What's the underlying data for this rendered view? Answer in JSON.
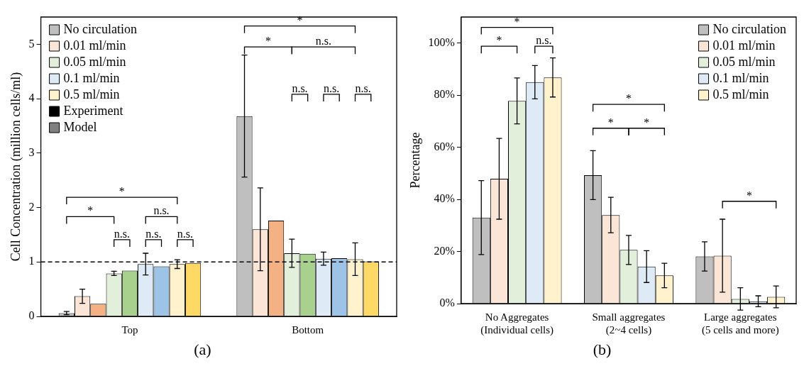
{
  "chart_data": [
    {
      "type": "bar",
      "title": "(a)",
      "ylabel": "Cell Concentration (million cells/ml)",
      "categories": [
        "Top",
        "Bottom"
      ],
      "ylim": [
        0,
        5.5
      ],
      "yticks": [
        0,
        1,
        2,
        3,
        4,
        5
      ],
      "grid": false,
      "legend": "top left",
      "series": [
        {
          "name": "No circulation",
          "color": "#bfbfbf",
          "values": [
            0.06,
            3.68
          ],
          "errors": [
            0.03,
            1.12
          ]
        },
        {
          "name": "0.01 ml/min",
          "color": "#fbe5d6",
          "values": [
            0.37,
            1.6
          ],
          "errors": [
            0.13,
            0.76
          ]
        },
        {
          "color": "#f4b183",
          "values": [
            0.23,
            1.76
          ]
        },
        {
          "name": "0.05 ml/min",
          "color": "#e2efda",
          "values": [
            0.79,
            1.16
          ],
          "errors": [
            0.04,
            0.26
          ]
        },
        {
          "color": "#a9d18e",
          "values": [
            0.84,
            1.15
          ]
        },
        {
          "name": "0.1 ml/min",
          "color": "#deebf7",
          "values": [
            0.96,
            1.06
          ],
          "errors": [
            0.2,
            0.12
          ]
        },
        {
          "color": "#9dc3e6",
          "values": [
            0.92,
            1.07
          ]
        },
        {
          "name": "0.5 ml/min",
          "color": "#fff2cc",
          "values": [
            0.96,
            1.05
          ],
          "errors": [
            0.08,
            0.3
          ]
        },
        {
          "color": "#ffd966",
          "values": [
            0.98,
            1.01
          ]
        },
        {
          "name": "Experiment",
          "color": "#000000",
          "values": [
            null,
            null
          ]
        },
        {
          "name": "Model",
          "color": "#808080",
          "values": [
            null,
            null
          ]
        }
      ],
      "ref_lines": [
        {
          "axis": "y",
          "value": 1,
          "line_style": "dashed",
          "color": "#000000"
        }
      ],
      "annotations": [
        "*",
        "*",
        "n.s.",
        "n.s.",
        "n.s.",
        "n.s.",
        "*",
        "*",
        "n.s.",
        "n.s.",
        "n.s.",
        "n.s."
      ]
    },
    {
      "type": "bar",
      "title": "(b)",
      "ylabel": "Percentage",
      "categories": [
        "No Aggregates\n(Individual cells)",
        "Small aggregates\n(2~4 cells)",
        "Large aggregates\n(5 cells and more)"
      ],
      "ylim": [
        0,
        110
      ],
      "yticks": [
        {
          "value": 0,
          "label": "0%"
        },
        {
          "value": 20,
          "label": "20%"
        },
        {
          "value": 40,
          "label": "40%"
        },
        {
          "value": 60,
          "label": "60%"
        },
        {
          "value": 80,
          "label": "80%"
        },
        {
          "value": 100,
          "label": "100%"
        }
      ],
      "grid": false,
      "legend": "top right",
      "series": [
        {
          "name": "No circulation",
          "color": "#bfbfbf",
          "values": [
            33.0,
            49.3,
            18.1
          ],
          "errors": [
            14.2,
            9.4,
            5.6
          ]
        },
        {
          "name": "0.01 ml/min",
          "color": "#fbe5d6",
          "values": [
            47.9,
            34.0,
            18.4
          ],
          "errors": [
            15.5,
            6.8,
            14.0
          ]
        },
        {
          "name": "0.05 ml/min",
          "color": "#e2efda",
          "values": [
            77.8,
            20.6,
            1.8
          ],
          "errors": [
            8.8,
            5.6,
            4.3
          ]
        },
        {
          "name": "0.1 ml/min",
          "color": "#deebf7",
          "values": [
            85.0,
            14.2,
            0.9
          ],
          "errors": [
            6.4,
            6.1,
            2.1
          ]
        },
        {
          "name": "0.5 ml/min",
          "color": "#fff2cc",
          "values": [
            86.8,
            10.8,
            2.6
          ],
          "errors": [
            7.5,
            4.7,
            4.2
          ]
        }
      ],
      "annotations": [
        "*",
        "*",
        "n.s.",
        "*",
        "*",
        "*",
        "*"
      ]
    }
  ]
}
